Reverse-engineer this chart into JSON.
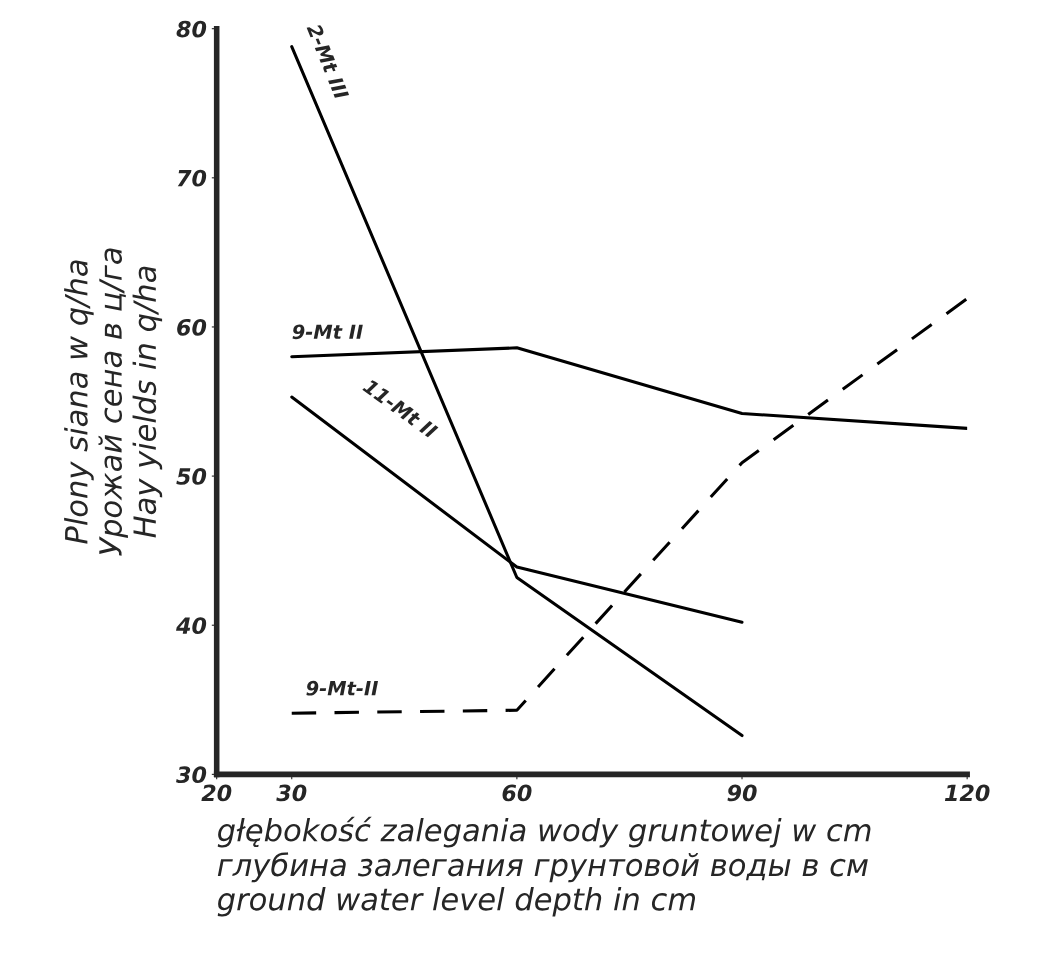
{
  "chart_data": {
    "type": "line",
    "xlabel": "głębokość zalegania wody gruntowej w cm\nглубина залегания грунтовой воды в см\nground water level depth in cm",
    "ylabel": "Plony siana w q/ha\nУрожай сена в ц/га\nHay yields in q/ha",
    "series": [
      {
        "name": "2-Mt III",
        "color": "#000000",
        "x": [
          30,
          60,
          90
        ],
        "values": [
          78.8,
          43.2,
          32.6
        ],
        "line_style": "solid"
      },
      {
        "name": "9-Mt II",
        "color": "#000000",
        "x": [
          30,
          60,
          90,
          120
        ],
        "values": [
          58.0,
          58.6,
          54.2,
          53.2
        ],
        "line_style": "solid"
      },
      {
        "name": "11-Mt II",
        "color": "#000000",
        "x": [
          30,
          60,
          90
        ],
        "values": [
          55.3,
          43.9,
          40.2
        ],
        "line_style": "solid"
      },
      {
        "name": "9-Mt-II",
        "color": "#000000",
        "x": [
          30,
          60,
          90,
          120
        ],
        "values": [
          34.1,
          34.3,
          50.9,
          61.9
        ],
        "line_style": "dashed"
      }
    ],
    "xlim": [
      20,
      120
    ],
    "ylim": [
      30,
      80
    ],
    "xticks": [
      20,
      30,
      60,
      90,
      120
    ],
    "yticks": [
      30,
      40,
      50,
      60,
      70,
      80
    ],
    "grid": false,
    "legend": false,
    "marker": "none"
  }
}
